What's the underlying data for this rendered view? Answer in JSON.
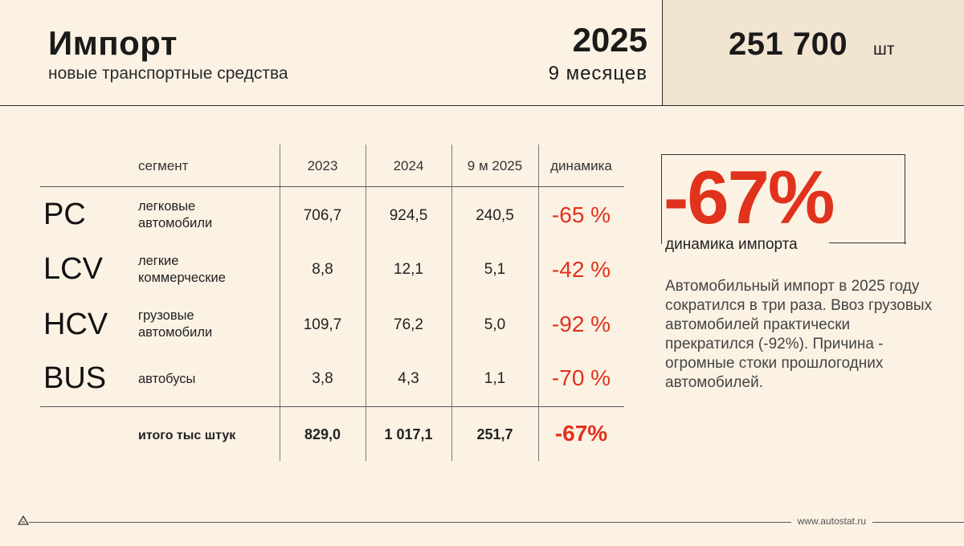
{
  "header": {
    "title": "Импорт",
    "subtitle": "новые транспортные средства",
    "year": "2025",
    "period": "9  месяцев",
    "total_value": "251 700",
    "total_unit": "шт"
  },
  "table": {
    "columns": [
      "сегмент",
      "2023",
      "2024",
      "9 м 2025",
      "динамика"
    ],
    "rows": [
      {
        "code": "PC",
        "segment_line1": "легковые",
        "segment_line2": "автомобили",
        "y2023": "706,7",
        "y2024": "924,5",
        "y2025": "240,5",
        "dynamics": "-65 %"
      },
      {
        "code": "LCV",
        "segment_line1": "легкие",
        "segment_line2": "коммерческие",
        "y2023": "8,8",
        "y2024": "12,1",
        "y2025": "5,1",
        "dynamics": "-42 %"
      },
      {
        "code": "HCV",
        "segment_line1": "грузовые",
        "segment_line2": "автомобили",
        "y2023": "109,7",
        "y2024": "76,2",
        "y2025": "5,0",
        "dynamics": "-92 %"
      },
      {
        "code": "BUS",
        "segment_line1": "автобусы",
        "segment_line2": "",
        "y2023": "3,8",
        "y2024": "4,3",
        "y2025": "1,1",
        "dynamics": "-70 %"
      }
    ],
    "total": {
      "label": "итого тыс штук",
      "y2023": "829,0",
      "y2024": "1 017,1",
      "y2025": "251,7",
      "dynamics": "-67%"
    }
  },
  "highlight": {
    "value": "-67%",
    "label": "динамика импорта",
    "note": "Автомобильный импорт в 2025 году сократился в три раза. Ввоз грузовых автомобилей практически прекратился (-92%). Причина - огромные стоки прошлогодних автомобилей."
  },
  "footer": {
    "url": "www.autostat.ru"
  },
  "colors": {
    "background": "#fbf2e4",
    "accent": "#e0321c",
    "panel": "#f1e4d1"
  }
}
